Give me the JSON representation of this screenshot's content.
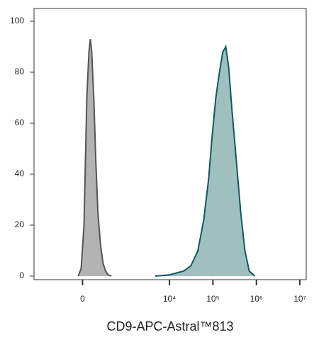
{
  "chart_data": {
    "type": "area",
    "xlabel": "CD9-APC-Astral™813",
    "xscale": "asinh",
    "xscale_width": 200,
    "xlim": [
      -1300,
      14000000
    ],
    "xticks": [
      0,
      {
        "value": 10000,
        "label": "10⁴"
      },
      {
        "value": 100000,
        "label": "10⁵"
      },
      {
        "value": 1000000,
        "label": "10⁶"
      },
      {
        "value": 10000000,
        "label": "10⁷"
      }
    ],
    "ylim": [
      -1.4,
      105
    ],
    "yticks": [
      0,
      20,
      40,
      60,
      80,
      100
    ],
    "series": [
      {
        "color": "#b3b3b3",
        "line_color": "#555555",
        "x": [
          -46,
          -15,
          15,
          46,
          69,
          85,
          101,
          126,
          153,
          181,
          221,
          263,
          310,
          360,
          440
        ],
        "values": [
          0,
          3,
          20,
          70,
          88,
          93,
          88,
          70,
          45,
          25,
          12,
          5,
          2,
          0.5,
          0
        ]
      },
      {
        "color": "#9fc0bf",
        "line_color": "#0f5a5c",
        "x": [
          4700,
          10000,
          21300,
          31000,
          45100,
          61300,
          79500,
          96000,
          116600,
          141000,
          169000,
          197000,
          230000,
          275000,
          346000,
          436000,
          543000,
          684000,
          924000
        ],
        "values": [
          0,
          0.5,
          2,
          4,
          10,
          22,
          38,
          55,
          70,
          80,
          88,
          90,
          82,
          65,
          45,
          25,
          10,
          2,
          0
        ]
      }
    ]
  }
}
